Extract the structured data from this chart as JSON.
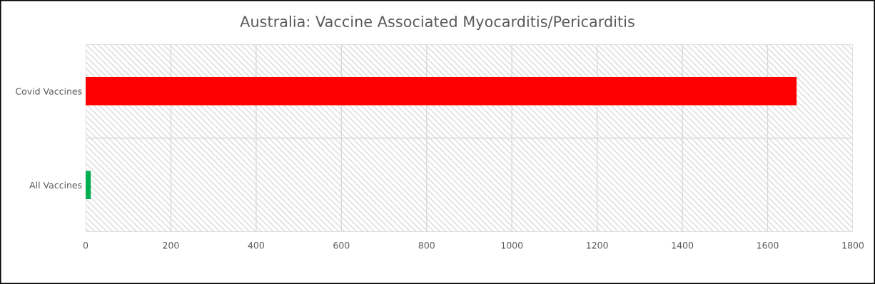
{
  "chart_data": {
    "type": "bar",
    "orientation": "horizontal",
    "title": "Australia: Vaccine Associated Myocarditis/Pericarditis",
    "categories": [
      "Covid Vaccines",
      "All Vaccines"
    ],
    "values": [
      1668,
      12
    ],
    "colors": [
      "#ff0000",
      "#00b050"
    ],
    "xlim": [
      0,
      1800
    ],
    "xticks": [
      0,
      200,
      400,
      600,
      800,
      1000,
      1200,
      1400,
      1600,
      1800
    ],
    "grid": true,
    "legend": false
  }
}
